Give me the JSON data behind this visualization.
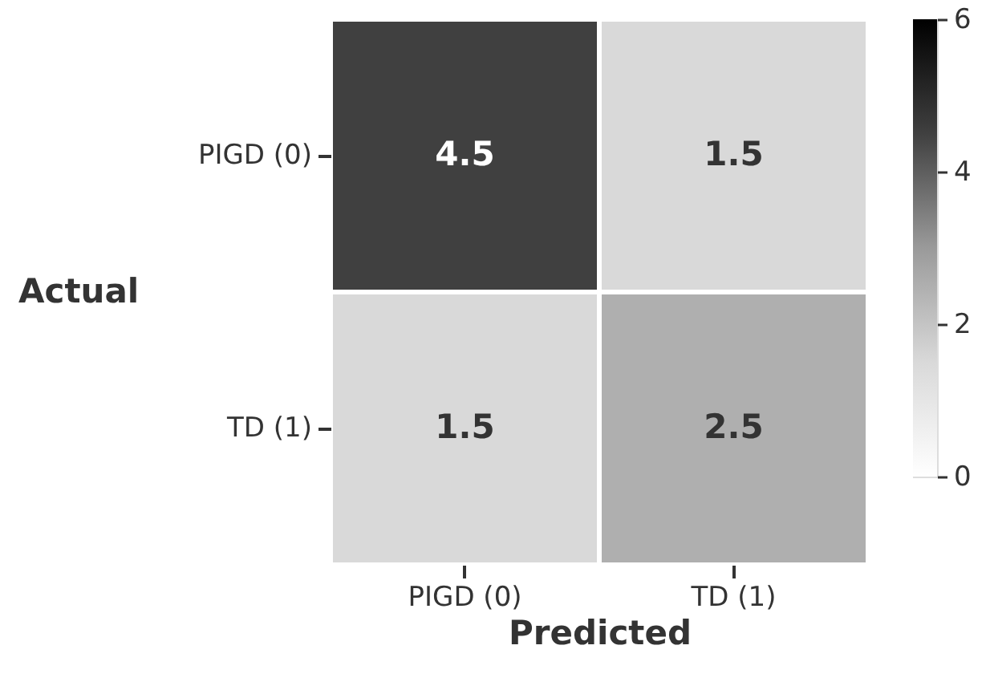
{
  "chart_data": {
    "type": "heatmap",
    "xlabel": "Predicted",
    "ylabel": "Actual",
    "categories": [
      "PIGD (0)",
      "TD (1)"
    ],
    "y_categories": [
      "PIGD (0)",
      "TD (1)"
    ],
    "cells": [
      [
        4.5,
        1.5
      ],
      [
        1.5,
        2.5
      ]
    ],
    "clim": [
      0,
      6
    ],
    "cticks": [
      0,
      2,
      4,
      6
    ],
    "data_labels": true
  }
}
